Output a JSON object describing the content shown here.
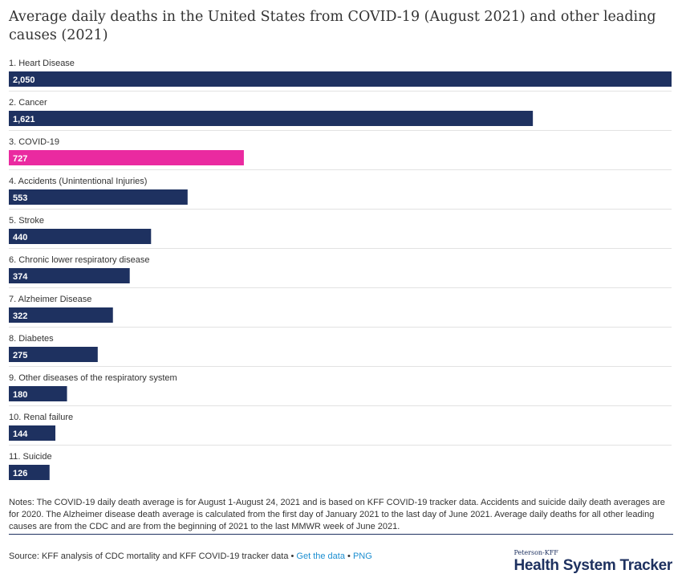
{
  "title": "Average daily deaths in the United States from COVID-19 (August 2021) and other leading causes (2021)",
  "chart_data": {
    "type": "bar",
    "orientation": "horizontal",
    "title": "Average daily deaths in the United States from COVID-19 (August 2021) and other leading causes (2021)",
    "categories": [
      "1. Heart Disease",
      "2. Cancer",
      "3. COVID-19",
      "4. Accidents (Unintentional Injuries)",
      "5. Stroke",
      "6. Chronic lower respiratory disease",
      "7. Alzheimer Disease",
      "8. Diabetes",
      "9. Other diseases of the respiratory system",
      "10. Renal failure",
      "11. Suicide"
    ],
    "values": [
      2050,
      1621,
      727,
      553,
      440,
      374,
      322,
      275,
      180,
      144,
      126
    ],
    "value_labels": [
      "2,050",
      "1,621",
      "727",
      "553",
      "440",
      "374",
      "322",
      "275",
      "180",
      "144",
      "126"
    ],
    "colors": [
      "#1e3160",
      "#1e3160",
      "#ea2aa0",
      "#1e3160",
      "#1e3160",
      "#1e3160",
      "#1e3160",
      "#1e3160",
      "#1e3160",
      "#1e3160",
      "#1e3160"
    ],
    "xlim": [
      0,
      2050
    ],
    "xlabel": "",
    "ylabel": ""
  },
  "notes": "Notes: The COVID-19 daily death average is for August 1-August 24, 2021 and is based on KFF COVID-19 tracker data. Accidents and suicide daily death averages  are for 2020. The Alzheimer disease death average is calculated from the first day of January 2021 to the last day of June 2021.  Average daily deaths for all other leading causes are from the CDC and are from the beginning of 2021 to the last MMWR  week of June 2021.",
  "source": {
    "text": "Source: KFF analysis of CDC mortality and KFF COVID-19 tracker data •",
    "get_data": "Get the data",
    "separator": "•",
    "png": "PNG"
  },
  "brand": {
    "small": "Peterson-KFF",
    "big": "Health System Tracker"
  }
}
